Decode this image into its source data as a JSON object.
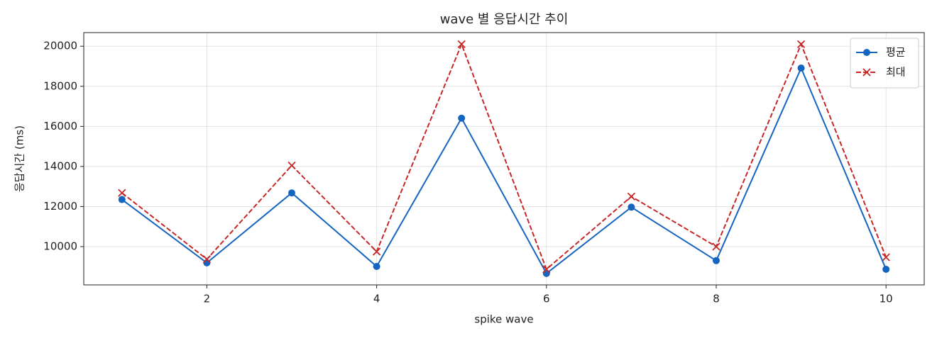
{
  "chart_data": {
    "type": "line",
    "title": "wave 별 응답시간 추이",
    "x_label": "spike wave",
    "y_label": "응답시간 (ms)",
    "x": [
      1,
      2,
      3,
      4,
      5,
      6,
      7,
      8,
      9,
      10
    ],
    "series": [
      {
        "name": "평균",
        "color": "#1565c0",
        "marker": "circle",
        "dash": "solid",
        "values": [
          12350,
          9190,
          12680,
          9010,
          16410,
          8660,
          11970,
          9300,
          18910,
          8870
        ]
      },
      {
        "name": "최대",
        "color": "#c62828",
        "marker": "x",
        "dash": "dashed",
        "values": [
          12680,
          9370,
          14050,
          9750,
          20100,
          8870,
          12500,
          10000,
          20100,
          9470
        ]
      }
    ],
    "xlim": [
      0.55,
      10.45
    ],
    "xticks": [
      2,
      4,
      6,
      8,
      10
    ],
    "ylim": [
      8090,
      20680
    ],
    "yticks": [
      10000,
      12000,
      14000,
      16000,
      18000,
      20000
    ],
    "grid": true,
    "legend": "upper right"
  }
}
